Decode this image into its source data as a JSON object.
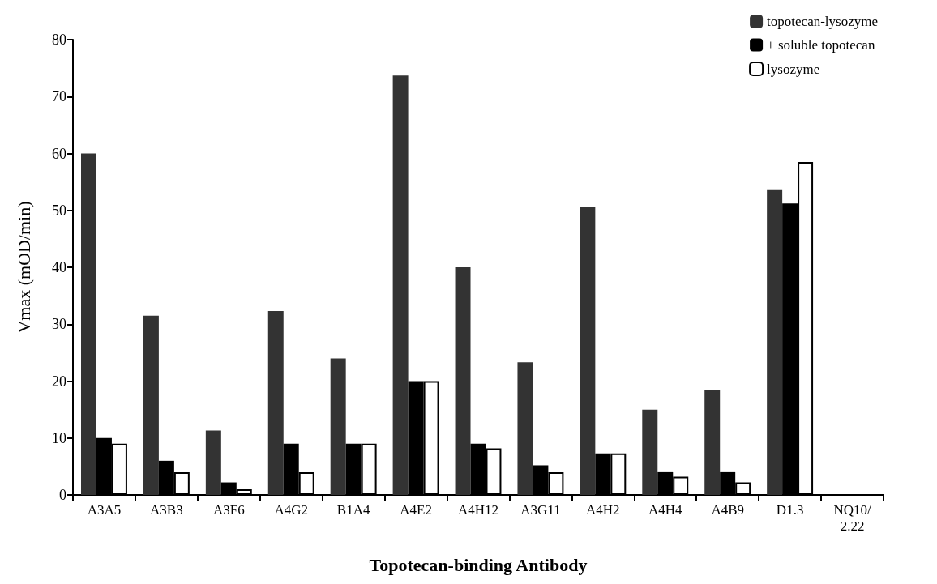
{
  "chart_data": {
    "type": "bar",
    "xlabel": "Topotecan-binding Antibody",
    "ylabel": "Vmax (mOD/min)",
    "categories": [
      "A3A5",
      "A3B3",
      "A3F6",
      "A4G2",
      "B1A4",
      "A4E2",
      "A4H12",
      "A3G11",
      "A4H2",
      "A4H4",
      "A4B9",
      "D1.3",
      "NQ10/\n2.22"
    ],
    "series": [
      {
        "name": "topotecan-lysozyme",
        "color": "#333333",
        "values": [
          60,
          31.5,
          11.3,
          32.3,
          24,
          73.7,
          40,
          23.3,
          50.6,
          15,
          18.4,
          53.7,
          0
        ]
      },
      {
        "name": "+ soluble topotecan",
        "color": "#000000",
        "values": [
          10,
          6,
          2.2,
          9,
          9,
          20,
          9,
          5.2,
          7.3,
          4,
          4,
          51.2,
          0
        ]
      },
      {
        "name": "lysozyme",
        "color": "#ffffff",
        "values": [
          9,
          4,
          1,
          4,
          9,
          20,
          8.2,
          4,
          7.3,
          3.2,
          2.2,
          58.5,
          0
        ]
      }
    ],
    "ylim": [
      0,
      80
    ],
    "yticks": [
      0,
      10,
      20,
      30,
      40,
      50,
      60,
      70,
      80
    ],
    "grid": false,
    "legend": "top right"
  }
}
